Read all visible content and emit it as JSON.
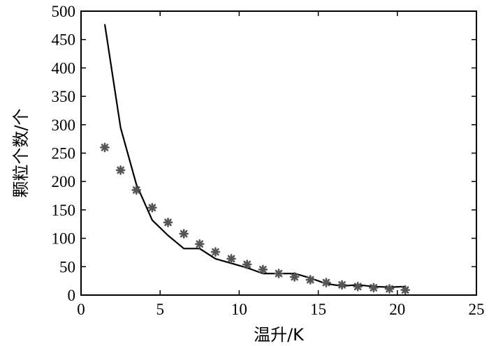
{
  "chart_data": {
    "type": "line",
    "xlabel": "温升/K",
    "ylabel": "颗粒个数/个",
    "xlim": [
      0,
      25
    ],
    "ylim": [
      0,
      500
    ],
    "x_ticks": [
      0,
      5,
      10,
      15,
      20,
      25
    ],
    "y_ticks": [
      0,
      50,
      100,
      150,
      200,
      250,
      300,
      350,
      400,
      450,
      500
    ],
    "grid": false,
    "legend": "none",
    "series": [
      {
        "type": "line",
        "color": "#000000",
        "x": [
          1.5,
          2.5,
          3.5,
          4.5,
          5.5,
          6.5,
          7.5,
          8.5,
          9.5,
          10.5,
          11.5,
          12.5,
          13.5,
          14.5,
          15.5,
          16.5,
          17.5,
          18.5,
          19.5,
          20.5
        ],
        "y": [
          477,
          295,
          195,
          132,
          105,
          82,
          82,
          64,
          56,
          48,
          38,
          38,
          38,
          30,
          20,
          16,
          18,
          15,
          14,
          15
        ]
      },
      {
        "type": "scatter",
        "color": "#555555",
        "marker": "asterisk",
        "x": [
          1.5,
          2.5,
          3.5,
          4.5,
          5.5,
          6.5,
          7.5,
          8.5,
          9.5,
          10.5,
          11.5,
          12.5,
          13.5,
          14.5,
          15.5,
          16.5,
          17.5,
          18.5,
          19.5,
          20.5
        ],
        "y": [
          260,
          220,
          185,
          154,
          128,
          108,
          90,
          76,
          64,
          54,
          45,
          38,
          32,
          27,
          22,
          18,
          15,
          13,
          11,
          9
        ]
      }
    ]
  }
}
